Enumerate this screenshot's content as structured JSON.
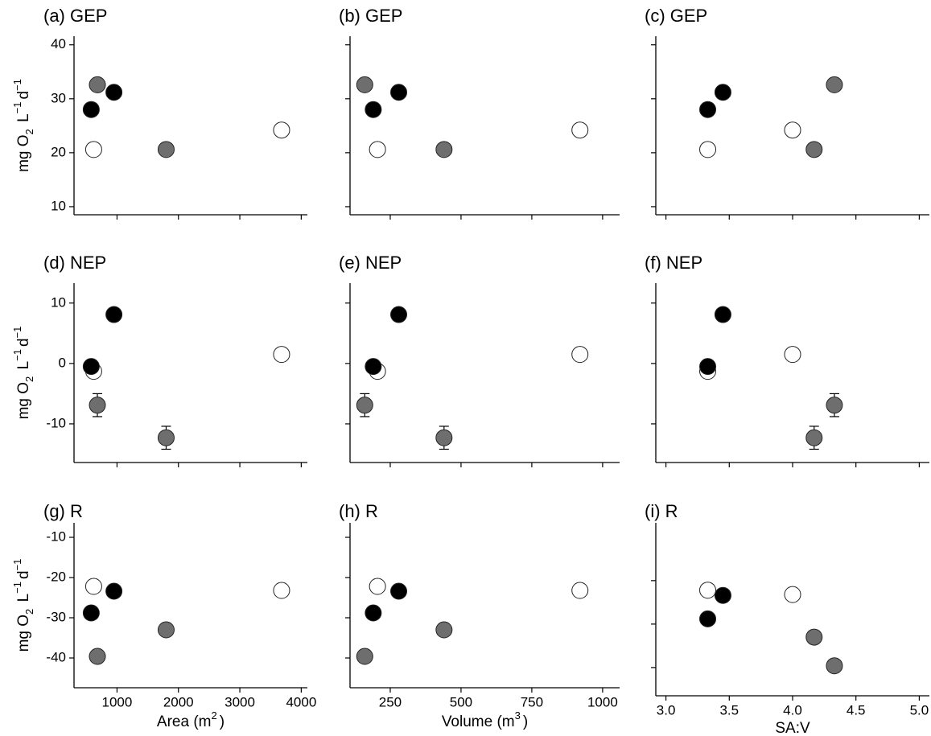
{
  "chart_data": [
    {
      "type": "scatter",
      "title": "(a) GEP",
      "x": [
        620,
        580,
        680,
        950,
        1800,
        3680
      ],
      "y": [
        20.6,
        28,
        32.6,
        31.2,
        20.6,
        24.2
      ],
      "colors": [
        "#ffffff",
        "#000000",
        "#6e6e6e",
        "#000000",
        "#6e6e6e",
        "#ffffff"
      ],
      "xlim": [
        300,
        4100
      ],
      "xticks": [
        1000,
        2000,
        3000,
        4000
      ],
      "ylim": [
        8.5,
        41.6
      ],
      "yticks": [
        10,
        20,
        30,
        40
      ],
      "show_xtick_labels": false,
      "show_ytick_labels": true,
      "y_label": [
        {
          "text": "mg O"
        },
        {
          "text": "2",
          "shift": "sub"
        },
        {
          "text": " L"
        },
        {
          "text": "−1",
          "shift": "super"
        },
        {
          "text": "d"
        },
        {
          "text": "−1",
          "shift": "super"
        }
      ]
    },
    {
      "type": "scatter",
      "title": "(b) GEP",
      "x": [
        205,
        190,
        160,
        280,
        440,
        920
      ],
      "y": [
        20.6,
        28,
        32.6,
        31.2,
        20.6,
        24.2
      ],
      "colors": [
        "#ffffff",
        "#000000",
        "#6e6e6e",
        "#000000",
        "#6e6e6e",
        "#ffffff"
      ],
      "xlim": [
        108,
        1060
      ],
      "xticks": [
        250,
        500,
        750,
        1000
      ],
      "ylim": [
        8.5,
        41.6
      ],
      "yticks": [
        10,
        20,
        30,
        40
      ],
      "show_xtick_labels": false,
      "show_ytick_labels": false
    },
    {
      "type": "scatter",
      "title": "(c) GEP",
      "x": [
        3.33,
        3.33,
        4.33,
        3.45,
        4.17,
        4.0
      ],
      "y": [
        20.6,
        28,
        32.6,
        31.2,
        20.6,
        24.2
      ],
      "colors": [
        "#ffffff",
        "#000000",
        "#6e6e6e",
        "#000000",
        "#6e6e6e",
        "#ffffff"
      ],
      "xlim": [
        2.92,
        5.08
      ],
      "xticks": [
        {
          "value": 3,
          "label": "3.0"
        },
        3.5,
        {
          "value": 4,
          "label": "4.0"
        },
        4.5,
        {
          "value": 5,
          "label": "5.0"
        }
      ],
      "ylim": [
        8.5,
        41.6
      ],
      "yticks": [
        10,
        20,
        30,
        40
      ],
      "show_xtick_labels": false,
      "show_ytick_labels": false
    },
    {
      "type": "scatter",
      "title": "(d) NEP",
      "x": [
        620,
        580,
        680,
        950,
        1800,
        3680
      ],
      "y": [
        -1.3,
        -0.5,
        -6.9,
        8.1,
        -12.3,
        1.5
      ],
      "errors": [
        0.3,
        0.3,
        1.9,
        1.0,
        1.9,
        0.6
      ],
      "colors": [
        "#ffffff",
        "#000000",
        "#6e6e6e",
        "#000000",
        "#6e6e6e",
        "#ffffff"
      ],
      "xlim": [
        300,
        4100
      ],
      "xticks": [
        1000,
        2000,
        3000,
        4000
      ],
      "ylim": [
        -16.4,
        13.3
      ],
      "yticks": [
        -10,
        0,
        10
      ],
      "show_xtick_labels": false,
      "show_ytick_labels": true,
      "y_label": [
        {
          "text": "mg O"
        },
        {
          "text": "2",
          "shift": "sub"
        },
        {
          "text": " L"
        },
        {
          "text": "−1",
          "shift": "super"
        },
        {
          "text": "d"
        },
        {
          "text": "−1",
          "shift": "super"
        }
      ]
    },
    {
      "type": "scatter",
      "title": "(e) NEP",
      "x": [
        205,
        190,
        160,
        280,
        440,
        920
      ],
      "y": [
        -1.3,
        -0.5,
        -6.9,
        8.1,
        -12.3,
        1.5
      ],
      "errors": [
        0.3,
        0.3,
        1.9,
        1.0,
        1.9,
        0.6
      ],
      "colors": [
        "#ffffff",
        "#000000",
        "#6e6e6e",
        "#000000",
        "#6e6e6e",
        "#ffffff"
      ],
      "xlim": [
        108,
        1060
      ],
      "xticks": [
        250,
        500,
        750,
        1000
      ],
      "ylim": [
        -16.4,
        13.3
      ],
      "yticks": [
        -10,
        0,
        10
      ],
      "show_xtick_labels": false,
      "show_ytick_labels": false
    },
    {
      "type": "scatter",
      "title": "(f) NEP",
      "x": [
        3.33,
        3.33,
        4.33,
        3.45,
        4.17,
        4.0
      ],
      "y": [
        -1.3,
        -0.5,
        -6.9,
        8.1,
        -12.3,
        1.5
      ],
      "errors": [
        0.3,
        0.3,
        1.9,
        1.0,
        1.9,
        0.6
      ],
      "colors": [
        "#ffffff",
        "#000000",
        "#6e6e6e",
        "#000000",
        "#6e6e6e",
        "#ffffff"
      ],
      "xlim": [
        2.92,
        5.08
      ],
      "xticks": [
        {
          "value": 3,
          "label": "3.0"
        },
        3.5,
        {
          "value": 4,
          "label": "4.0"
        },
        4.5,
        {
          "value": 5,
          "label": "5.0"
        }
      ],
      "ylim": [
        -16.4,
        13.3
      ],
      "yticks": [
        -10,
        0,
        10
      ],
      "show_xtick_labels": false,
      "show_ytick_labels": false
    },
    {
      "type": "scatter",
      "title": "(g) R",
      "x": [
        620,
        580,
        680,
        950,
        1800,
        3680
      ],
      "y": [
        -22.2,
        -28.8,
        -39.6,
        -23.4,
        -33,
        -23.2
      ],
      "errors": [
        0.3,
        0.3,
        1.2,
        0.5,
        1.2,
        0.3
      ],
      "colors": [
        "#ffffff",
        "#000000",
        "#6e6e6e",
        "#000000",
        "#6e6e6e",
        "#ffffff"
      ],
      "xlim": [
        300,
        4100
      ],
      "xticks": [
        1000,
        2000,
        3000,
        4000
      ],
      "ylim": [
        -47.4,
        -6.4
      ],
      "yticks": [
        -40,
        -30,
        -20,
        -10
      ],
      "show_xtick_labels": true,
      "show_ytick_labels": true,
      "y_label": [
        {
          "text": "mg O"
        },
        {
          "text": "2",
          "shift": "sub"
        },
        {
          "text": " L"
        },
        {
          "text": "−1",
          "shift": "super"
        },
        {
          "text": "d"
        },
        {
          "text": "−1",
          "shift": "super"
        }
      ],
      "x_label": [
        {
          "text": "Area (m"
        },
        {
          "text": "2",
          "shift": "super"
        },
        {
          "text": ")"
        }
      ]
    },
    {
      "type": "scatter",
      "title": "(h) R",
      "x": [
        205,
        190,
        160,
        280,
        440,
        920
      ],
      "y": [
        -22.2,
        -28.8,
        -39.6,
        -23.4,
        -33,
        -23.2
      ],
      "errors": [
        0.3,
        0.3,
        1.2,
        0.5,
        1.2,
        0.3
      ],
      "colors": [
        "#ffffff",
        "#000000",
        "#6e6e6e",
        "#000000",
        "#6e6e6e",
        "#ffffff"
      ],
      "xlim": [
        108,
        1060
      ],
      "xticks": [
        250,
        500,
        750,
        1000
      ],
      "ylim": [
        -47.4,
        -6.4
      ],
      "yticks": [
        -40,
        -30,
        -20,
        -10
      ],
      "show_xtick_labels": true,
      "show_ytick_labels": false,
      "x_label": [
        {
          "text": "Volume (m"
        },
        {
          "text": "3",
          "shift": "super"
        },
        {
          "text": ")"
        }
      ]
    },
    {
      "type": "scatter",
      "title": "(i) R",
      "x": [
        3.33,
        3.33,
        4.33,
        3.45,
        4.17,
        4.0
      ],
      "y": [
        -22.2,
        -28.8,
        -39.6,
        -23.4,
        -33,
        -23.2
      ],
      "errors": [
        0.3,
        0.3,
        1.2,
        0.5,
        1.2,
        0.3
      ],
      "colors": [
        "#ffffff",
        "#000000",
        "#6e6e6e",
        "#000000",
        "#6e6e6e",
        "#ffffff"
      ],
      "xlim": [
        2.92,
        5.08
      ],
      "xticks": [
        {
          "value": 3,
          "label": "3.0"
        },
        3.5,
        {
          "value": 4,
          "label": "4.0"
        },
        4.5,
        {
          "value": 5,
          "label": "5.0"
        }
      ],
      "ylim": [
        -46.5,
        -6.7
      ],
      "yticks": [
        -40,
        -30,
        -20
      ],
      "show_xtick_labels": true,
      "show_ytick_labels": false,
      "x_label": [
        {
          "text": "SA:V"
        }
      ]
    }
  ]
}
